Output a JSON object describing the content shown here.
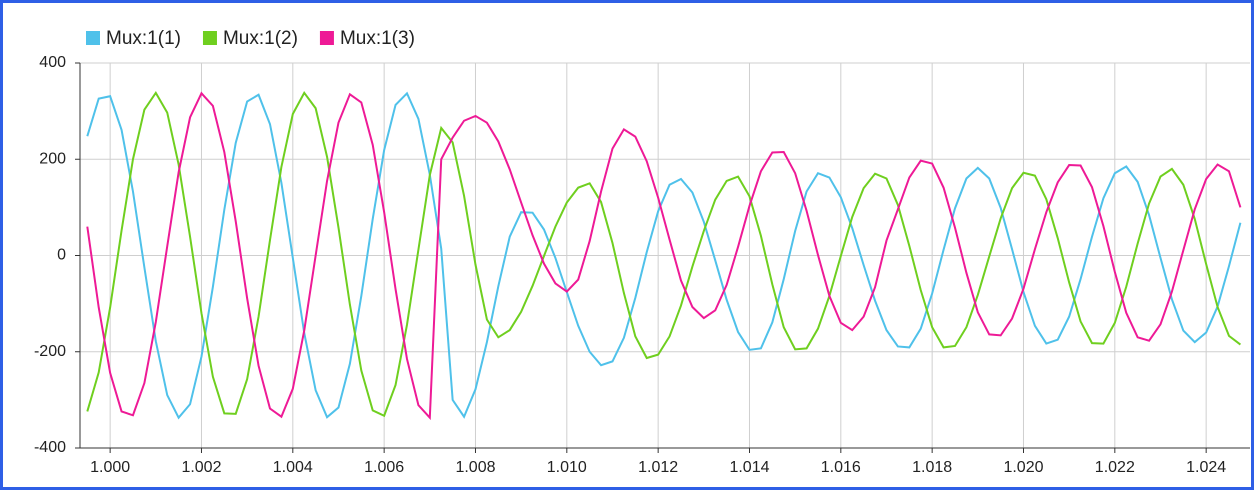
{
  "chart_data": {
    "type": "line",
    "x": [
      0.9995,
      0.99975,
      1,
      1.00025,
      1.0005,
      1.00075,
      1.001,
      1.00125,
      1.0015,
      1.00175,
      1.002,
      1.00225,
      1.0025,
      1.00275,
      1.003,
      1.00325,
      1.0035,
      1.00375,
      1.004,
      1.00425,
      1.0045,
      1.00475,
      1.005,
      1.00525,
      1.0055,
      1.00575,
      1.006,
      1.00625,
      1.0065,
      1.00675,
      1.007,
      1.00725,
      1.0075,
      1.00775,
      1.008,
      1.00825,
      1.0085,
      1.00875,
      1.009,
      1.00925,
      1.0095,
      1.00975,
      1.01,
      1.01025,
      1.0105,
      1.01075,
      1.011,
      1.01125,
      1.0115,
      1.01175,
      1.012,
      1.01225,
      1.0125,
      1.01275,
      1.013,
      1.01325,
      1.0135,
      1.01375,
      1.014,
      1.01425,
      1.0145,
      1.01475,
      1.015,
      1.01525,
      1.0155,
      1.01575,
      1.016,
      1.01625,
      1.0165,
      1.01675,
      1.017,
      1.01725,
      1.0175,
      1.01775,
      1.018,
      1.01825,
      1.0185,
      1.01875,
      1.019,
      1.01925,
      1.0195,
      1.01975,
      1.02,
      1.02025,
      1.0205,
      1.02075,
      1.021,
      1.02125,
      1.0215,
      1.02175,
      1.022,
      1.02225,
      1.0225,
      1.02275,
      1.023,
      1.02325,
      1.0235,
      1.02375,
      1.024,
      1.02425,
      1.0245,
      1.02475
    ],
    "series": [
      {
        "name": "Mux:1(1)",
        "color": "#4fc1ea",
        "values": [
          248,
          326,
          331,
          261,
          133,
          -25,
          -178,
          -290,
          -337,
          -309,
          -210,
          -65,
          95,
          234,
          320,
          334,
          273,
          151,
          -5,
          -161,
          -280,
          -336,
          -316,
          -225,
          -84,
          76,
          219,
          313,
          337,
          284,
          168,
          14,
          -300,
          -335,
          -278,
          -180,
          -64,
          39,
          90,
          89,
          54,
          -5,
          -76,
          -146,
          -200,
          -228,
          -220,
          -171,
          -88,
          7,
          92,
          147,
          159,
          131,
          70,
          -10,
          -92,
          -159,
          -196,
          -193,
          -139,
          -49,
          51,
          133,
          171,
          162,
          121,
          57,
          -20,
          -94,
          -155,
          -189,
          -191,
          -152,
          -79,
          12,
          98,
          160,
          182,
          160,
          99,
          13,
          -76,
          -146,
          -183,
          -175,
          -127,
          -49,
          39,
          119,
          171,
          185,
          153,
          84,
          -5,
          -91,
          -156,
          -180,
          -160,
          -106,
          -22,
          68
        ]
      },
      {
        "name": "Mux:1(2)",
        "color": "#6fcf1f",
        "values": [
          -324,
          -243,
          -108,
          52,
          200,
          303,
          338,
          297,
          189,
          39,
          -120,
          -252,
          -328,
          -329,
          -257,
          -127,
          32,
          184,
          294,
          338,
          306,
          205,
          58,
          -102,
          -239,
          -322,
          -333,
          -269,
          -144,
          12,
          167,
          265,
          235,
          124,
          -19,
          -133,
          -170,
          -155,
          -117,
          -63,
          -1,
          60,
          110,
          141,
          150,
          111,
          26,
          -78,
          -168,
          -213,
          -206,
          -168,
          -104,
          -23,
          51,
          116,
          155,
          164,
          123,
          41,
          -60,
          -149,
          -195,
          -193,
          -152,
          -84,
          -1,
          80,
          140,
          170,
          160,
          105,
          20,
          -72,
          -149,
          -191,
          -188,
          -149,
          -82,
          -2,
          77,
          140,
          172,
          166,
          117,
          36,
          -56,
          -137,
          -182,
          -183,
          -140,
          -65,
          25,
          108,
          164,
          180,
          147,
          76,
          -18,
          -107,
          -167,
          -185
        ]
      },
      {
        "name": "Mux:1(3)",
        "color": "#ee1a96",
        "values": [
          60,
          -108,
          -244,
          -324,
          -332,
          -265,
          -138,
          19,
          173,
          287,
          337,
          311,
          215,
          71,
          -89,
          -229,
          -318,
          -335,
          -277,
          -156,
          0,
          155,
          276,
          335,
          318,
          230,
          90,
          -70,
          -215,
          -311,
          -337,
          200,
          245,
          280,
          290,
          276,
          237,
          179,
          110,
          42,
          -17,
          -58,
          -75,
          -50,
          30,
          133,
          222,
          262,
          247,
          196,
          120,
          33,
          -52,
          -107,
          -130,
          -114,
          -61,
          18,
          103,
          175,
          214,
          215,
          171,
          93,
          1,
          -84,
          -140,
          -155,
          -127,
          -66,
          31,
          96,
          162,
          197,
          191,
          141,
          58,
          -36,
          -118,
          -164,
          -166,
          -131,
          -69,
          13,
          90,
          152,
          188,
          187,
          142,
          61,
          -34,
          -119,
          -170,
          -177,
          -143,
          -75,
          11,
          96,
          159,
          189,
          175,
          100
        ]
      }
    ],
    "xlim": [
      0.99934,
      1.02496
    ],
    "xticks": [
      {
        "value": 1,
        "label": "1.000"
      },
      {
        "value": 1.002,
        "label": "1.002"
      },
      {
        "value": 1.004,
        "label": "1.004"
      },
      {
        "value": 1.006,
        "label": "1.006"
      },
      {
        "value": 1.008,
        "label": "1.008"
      },
      {
        "value": 1.01,
        "label": "1.010"
      },
      {
        "value": 1.012,
        "label": "1.012"
      },
      {
        "value": 1.014,
        "label": "1.014"
      },
      {
        "value": 1.016,
        "label": "1.016"
      },
      {
        "value": 1.018,
        "label": "1.018"
      },
      {
        "value": 1.02,
        "label": "1.020"
      },
      {
        "value": 1.022,
        "label": "1.022"
      },
      {
        "value": 1.024,
        "label": "1.024"
      }
    ],
    "ylim": [
      -400,
      400
    ],
    "yticks": [
      400,
      200,
      0,
      -200,
      -400
    ],
    "grid": true,
    "legend": "top-left"
  }
}
